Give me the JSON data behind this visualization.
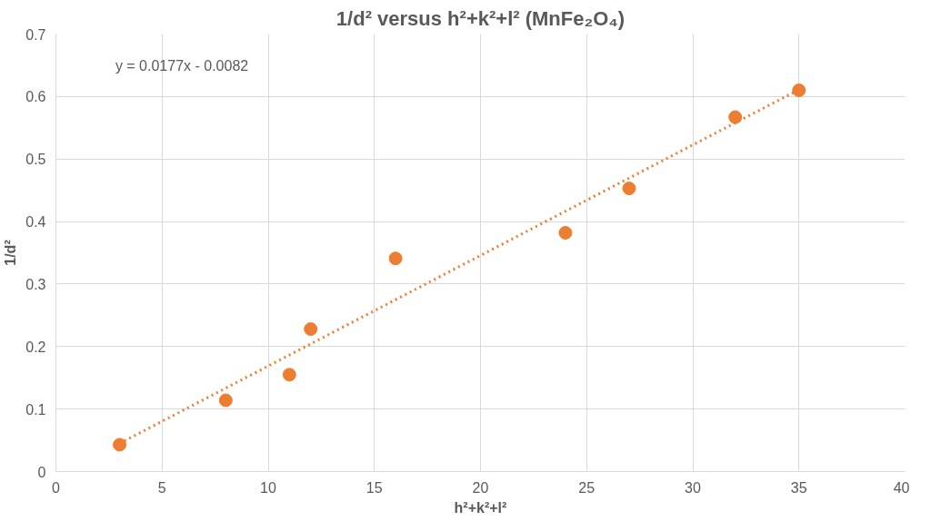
{
  "chart_data": {
    "type": "scatter",
    "title": "1/d² versus h²+k²+l² (MnFe₂O₄)",
    "xlabel": "h²+k²+l²",
    "ylabel": "1/d²",
    "annotations": [
      "y = 0.0177x - 0.0082"
    ],
    "x": [
      3,
      8,
      11,
      12,
      16,
      24,
      27,
      32,
      35
    ],
    "series": [
      {
        "color": "#ed7d31",
        "marker": "circle",
        "values": [
          0.043,
          0.114,
          0.155,
          0.228,
          0.341,
          0.382,
          0.453,
          0.567,
          0.61
        ]
      },
      {
        "type": "line",
        "color": "#ed7d31",
        "line_style": "dotted",
        "marker": "none",
        "x": [
          3,
          35
        ],
        "values": [
          0.045,
          0.611
        ]
      }
    ],
    "xlim": [
      0,
      40
    ],
    "xticks": [
      0,
      5,
      10,
      15,
      20,
      25,
      30,
      35,
      40
    ],
    "ylim": [
      0,
      0.7
    ],
    "yticks": [
      0,
      0.1,
      0.2,
      0.3,
      0.4,
      0.5,
      0.6,
      0.7
    ],
    "grid": true
  }
}
